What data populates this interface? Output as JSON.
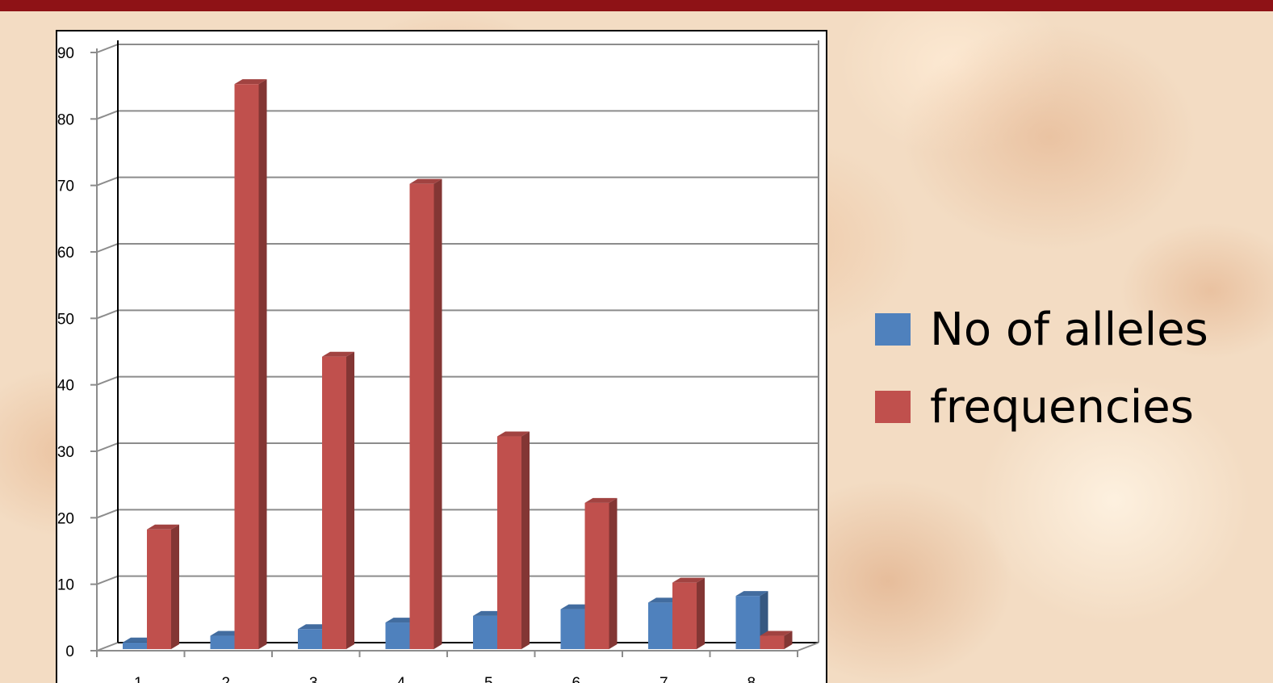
{
  "colors": {
    "top_bar": "#8e1216",
    "series_1": "#4f81bd",
    "series_2": "#c0504d"
  },
  "chart_data": {
    "type": "bar",
    "title": "",
    "xlabel": "",
    "ylabel": "",
    "categories": [
      "1",
      "2",
      "3",
      "4",
      "5",
      "6",
      "7",
      "8"
    ],
    "ylim": [
      0,
      90
    ],
    "yticks": [
      "0",
      "10",
      "20",
      "30",
      "40",
      "50",
      "60",
      "70",
      "80",
      "90"
    ],
    "grid": true,
    "legend_position": "right",
    "series": [
      {
        "name": "No of alleles",
        "color": "#4f81bd",
        "values": [
          1,
          2,
          3,
          4,
          5,
          6,
          7,
          8
        ]
      },
      {
        "name": "frequencies",
        "color": "#c0504d",
        "values": [
          18,
          85,
          44,
          70,
          32,
          22,
          10,
          2
        ]
      }
    ]
  }
}
